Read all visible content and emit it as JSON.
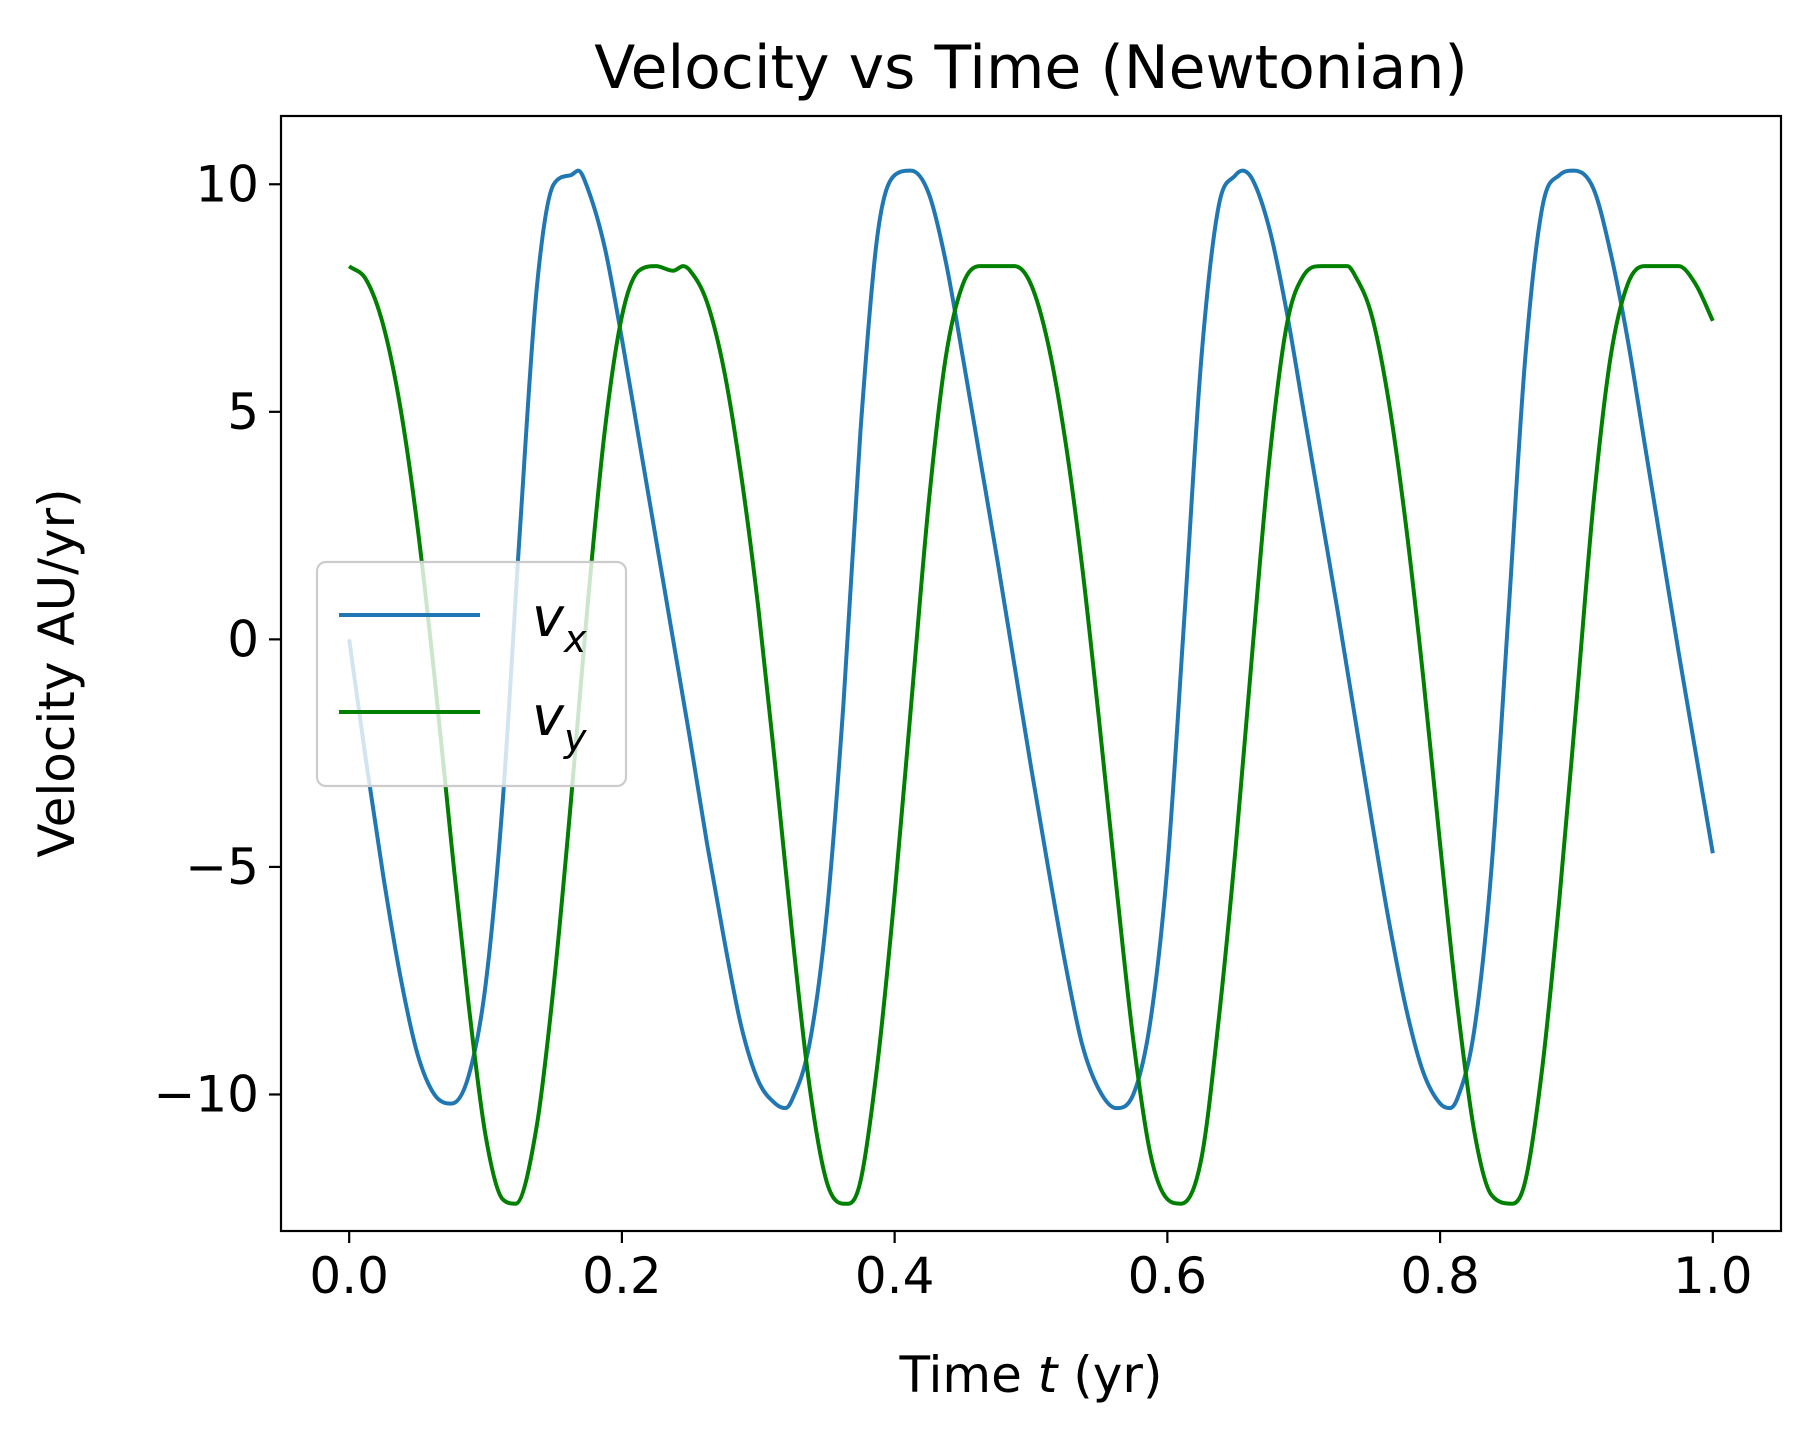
{
  "chart_data": {
    "type": "line",
    "title": "Velocity vs Time (Newtonian)",
    "xlabel_prefix": "Time ",
    "xlabel_var": "t",
    "xlabel_suffix": " (yr)",
    "ylabel": "Velocity AU/yr)",
    "xlim": [
      -0.05,
      1.05
    ],
    "ylim": [
      -13.0,
      11.5
    ],
    "xticks": [
      0.0,
      0.2,
      0.4,
      0.6,
      0.8,
      1.0
    ],
    "xtick_labels": [
      "0.0",
      "0.2",
      "0.4",
      "0.6",
      "0.8",
      "1.0"
    ],
    "yticks": [
      -10,
      -5,
      0,
      5,
      10
    ],
    "ytick_labels": [
      "−10",
      "−5",
      "0",
      "5",
      "10"
    ],
    "grid": false,
    "legend_position": "center-left",
    "series": [
      {
        "name": "v_x",
        "legend_main": "v",
        "legend_sub": "x",
        "color": "#1f77b4",
        "x": [
          0.0,
          0.0125,
          0.025,
          0.0375,
          0.05,
          0.0625,
          0.075,
          0.0875,
          0.1,
          0.1125,
          0.125,
          0.1375,
          0.15,
          0.1625,
          0.168,
          0.175,
          0.1875,
          0.2,
          0.2125,
          0.225,
          0.2375,
          0.25,
          0.2625,
          0.275,
          0.2875,
          0.3,
          0.3125,
          0.32,
          0.325,
          0.3375,
          0.35,
          0.3625,
          0.375,
          0.3875,
          0.4,
          0.412,
          0.425,
          0.4375,
          0.45,
          0.4625,
          0.475,
          0.4875,
          0.5,
          0.5125,
          0.525,
          0.5375,
          0.55,
          0.5625,
          0.575,
          0.5875,
          0.6,
          0.6125,
          0.625,
          0.6375,
          0.65,
          0.655,
          0.6625,
          0.675,
          0.6875,
          0.7,
          0.7125,
          0.725,
          0.7375,
          0.75,
          0.7625,
          0.775,
          0.7875,
          0.8,
          0.807,
          0.8125,
          0.825,
          0.8375,
          0.85,
          0.8625,
          0.875,
          0.8875,
          0.898,
          0.9125,
          0.925,
          0.9375,
          0.95,
          0.9625,
          0.975,
          0.9875,
          1.0
        ],
        "y": [
          0.0,
          -2.7,
          -5.2,
          -7.4,
          -9.1,
          -10.0,
          -10.2,
          -9.6,
          -7.6,
          -3.6,
          2.3,
          7.7,
          10.0,
          10.2,
          10.3,
          9.9,
          8.6,
          6.6,
          4.4,
          2.2,
          0.0,
          -2.2,
          -4.5,
          -6.6,
          -8.5,
          -9.7,
          -10.2,
          -10.3,
          -10.1,
          -8.9,
          -6.1,
          -1.4,
          4.6,
          8.9,
          10.2,
          10.3,
          9.8,
          8.3,
          6.2,
          4.0,
          1.8,
          -0.5,
          -2.8,
          -5.0,
          -7.1,
          -8.9,
          -9.9,
          -10.3,
          -10.0,
          -8.4,
          -5.0,
          0.5,
          6.2,
          9.5,
          10.2,
          10.3,
          10.1,
          9.0,
          7.2,
          5.0,
          2.8,
          0.6,
          -1.7,
          -4.0,
          -6.2,
          -8.1,
          -9.5,
          -10.2,
          -10.3,
          -10.1,
          -8.6,
          -5.1,
          0.5,
          6.2,
          9.5,
          10.2,
          10.3,
          9.9,
          8.5,
          6.6,
          4.3,
          2.0,
          -0.3,
          -2.5,
          -4.7
        ]
      },
      {
        "name": "v_y",
        "legend_main": "v",
        "legend_sub": "y",
        "color": "#008000",
        "x": [
          0.0,
          0.0125,
          0.025,
          0.0375,
          0.05,
          0.0625,
          0.075,
          0.0875,
          0.1,
          0.1125,
          0.122,
          0.1375,
          0.15,
          0.1625,
          0.175,
          0.1875,
          0.2,
          0.2125,
          0.225,
          0.2375,
          0.245,
          0.25,
          0.2625,
          0.275,
          0.2875,
          0.3,
          0.3125,
          0.325,
          0.3375,
          0.35,
          0.3625,
          0.366,
          0.375,
          0.3875,
          0.4,
          0.4125,
          0.425,
          0.4375,
          0.45,
          0.4625,
          0.475,
          0.488,
          0.5,
          0.5125,
          0.525,
          0.5375,
          0.55,
          0.5625,
          0.575,
          0.5875,
          0.6,
          0.61,
          0.625,
          0.6375,
          0.65,
          0.6625,
          0.675,
          0.6875,
          0.7,
          0.7125,
          0.725,
          0.732,
          0.7375,
          0.75,
          0.7625,
          0.775,
          0.7875,
          0.8,
          0.8125,
          0.825,
          0.8375,
          0.853,
          0.8625,
          0.875,
          0.8875,
          0.9,
          0.9125,
          0.925,
          0.9375,
          0.95,
          0.9625,
          0.975,
          0.9875,
          1.0
        ],
        "y": [
          8.2,
          7.9,
          6.9,
          5.1,
          2.5,
          -0.8,
          -4.5,
          -8.0,
          -10.9,
          -12.3,
          -12.4,
          -10.7,
          -7.6,
          -3.6,
          0.8,
          4.6,
          7.1,
          8.1,
          8.2,
          8.1,
          8.2,
          8.1,
          7.4,
          5.9,
          3.6,
          0.7,
          -2.8,
          -6.5,
          -9.8,
          -11.9,
          -12.4,
          -12.4,
          -11.9,
          -9.3,
          -5.6,
          -1.3,
          3.0,
          6.2,
          7.8,
          8.2,
          8.2,
          8.2,
          7.8,
          6.5,
          4.4,
          1.6,
          -1.8,
          -5.4,
          -8.8,
          -11.3,
          -12.3,
          -12.4,
          -11.4,
          -8.4,
          -4.6,
          -0.2,
          4.0,
          6.9,
          8.0,
          8.2,
          8.2,
          8.2,
          8.0,
          7.1,
          5.2,
          2.5,
          -0.8,
          -4.5,
          -8.0,
          -10.8,
          -12.2,
          -12.4,
          -11.9,
          -9.4,
          -5.7,
          -1.4,
          3.0,
          6.2,
          7.8,
          8.2,
          8.2,
          8.2,
          7.8,
          7.0
        ]
      }
    ]
  }
}
